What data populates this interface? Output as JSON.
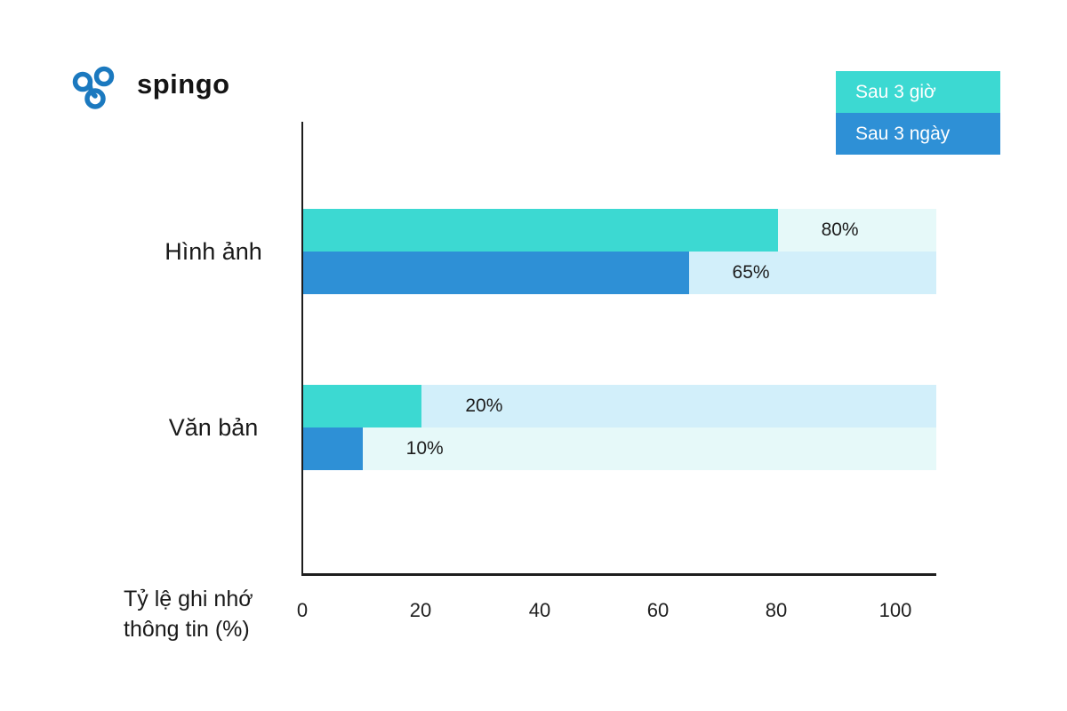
{
  "brand": {
    "name": "spingo",
    "logo_color": "#1B79BF"
  },
  "legend": {
    "items": [
      {
        "label": "Sau 3 giờ",
        "color": "#3CD9D2"
      },
      {
        "label": "Sau 3 ngày",
        "color": "#2E90D6"
      }
    ]
  },
  "chart_data": {
    "type": "bar",
    "orientation": "horizontal",
    "title": "",
    "xlabel": "Tỷ lệ ghi nhớ thông tin (%)",
    "xlabel_lines": {
      "line1": "Tỷ lệ ghi nhớ",
      "line2": "thông tin (%)"
    },
    "categories": [
      "Hình ảnh",
      "Văn bản"
    ],
    "series": [
      {
        "name": "Sau 3 giờ",
        "color": "#3CD9D2",
        "values": [
          80,
          20
        ]
      },
      {
        "name": "Sau 3 ngày",
        "color": "#2E90D6",
        "values": [
          65,
          10
        ]
      }
    ],
    "xlim": [
      0,
      106.8
    ],
    "ticks": [
      "0",
      "20",
      "40",
      "60",
      "80",
      "100"
    ],
    "tick_values": [
      0,
      20,
      40,
      60,
      80,
      100
    ],
    "grid": false,
    "legend_position": "top-right",
    "track_colors": {
      "pale_teal": "#E6F9F9",
      "pale_blue": "#D2EFFA"
    },
    "rows": [
      {
        "category": "Hình ảnh",
        "series": "Sau 3 giờ",
        "value": 80,
        "label": "80%",
        "fill": "#3CD9D2",
        "track": "#E6F9F9"
      },
      {
        "category": "Hình ảnh",
        "series": "Sau 3 ngày",
        "value": 65,
        "label": "65%",
        "fill": "#2E90D6",
        "track": "#D2EFFA"
      },
      {
        "category": "Văn bản",
        "series": "Sau 3 giờ",
        "value": 20,
        "label": "20%",
        "fill": "#3CD9D2",
        "track": "#D2EFFA"
      },
      {
        "category": "Văn bản",
        "series": "Sau 3 ngày",
        "value": 10,
        "label": "10%",
        "fill": "#2E90D6",
        "track": "#E6F9F9"
      }
    ]
  }
}
